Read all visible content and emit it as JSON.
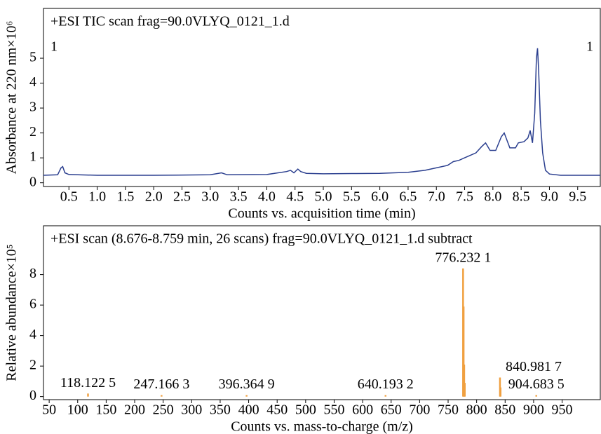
{
  "chart_data": [
    {
      "type": "line",
      "title": "+ESI TIC scan frag=90.0VLYQ_0121_1.d",
      "x_label": "Counts vs. acquisition time (min)",
      "y_label": "Absorbance at 220 nm×10⁶",
      "annotations": [
        "1",
        "1"
      ],
      "xlim": [
        0.05,
        9.9
      ],
      "ylim": [
        -0.15,
        7
      ],
      "xticks": [
        0.5,
        {
          "value": 1,
          "label": "1.0"
        },
        1.5,
        {
          "value": 2,
          "label": "2.0"
        },
        2.5,
        {
          "value": 3,
          "label": "3.0"
        },
        3.5,
        {
          "value": 4,
          "label": "4.0"
        },
        4.5,
        {
          "value": 5,
          "label": "5.0"
        },
        5.5,
        {
          "value": 6,
          "label": "6.0"
        },
        6.5,
        {
          "value": 7,
          "label": "7.0"
        },
        7.5,
        {
          "value": 8,
          "label": "8.0"
        },
        8.5,
        {
          "value": 9,
          "label": "9.0"
        },
        9.5
      ],
      "yticks": [
        0,
        1,
        2,
        3,
        4,
        5
      ],
      "series": [
        {
          "color": "#2b3f8f",
          "x": [
            0.05,
            0.3,
            0.36,
            0.39,
            0.43,
            0.5,
            1.0,
            2.0,
            3.0,
            3.2,
            3.3,
            4.0,
            4.35,
            4.42,
            4.48,
            4.55,
            4.6,
            4.7,
            5.0,
            5.5,
            6.0,
            6.5,
            6.8,
            7.0,
            7.2,
            7.3,
            7.4,
            7.5,
            7.6,
            7.7,
            7.8,
            7.87,
            7.95,
            8.05,
            8.15,
            8.2,
            8.3,
            8.4,
            8.45,
            8.55,
            8.62,
            8.66,
            8.7,
            8.74,
            8.77,
            8.79,
            8.81,
            8.84,
            8.88,
            8.93,
            9.0,
            9.2,
            9.5,
            9.9
          ],
          "values": [
            0.3,
            0.32,
            0.6,
            0.65,
            0.4,
            0.33,
            0.3,
            0.3,
            0.32,
            0.4,
            0.32,
            0.33,
            0.45,
            0.5,
            0.4,
            0.55,
            0.45,
            0.38,
            0.36,
            0.37,
            0.38,
            0.42,
            0.5,
            0.6,
            0.7,
            0.85,
            0.9,
            1.0,
            1.1,
            1.2,
            1.45,
            1.6,
            1.3,
            1.3,
            1.85,
            2.0,
            1.4,
            1.4,
            1.6,
            1.65,
            1.8,
            2.1,
            1.6,
            2.8,
            5.0,
            5.4,
            4.5,
            2.5,
            1.2,
            0.5,
            0.35,
            0.3,
            0.3,
            0.3
          ]
        }
      ]
    },
    {
      "type": "stick",
      "title": "+ESI scan (8.676-8.759 min, 26 scans) frag=90.0VLYQ_0121_1.d subtract",
      "x_label": "Counts vs. mass-to-charge (m/z)",
      "y_label": "Relative abundance×10⁵",
      "xlim": [
        40,
        1017
      ],
      "ylim": [
        -0.2,
        11.2
      ],
      "xticks": [
        50,
        100,
        150,
        200,
        250,
        300,
        350,
        400,
        450,
        500,
        550,
        600,
        650,
        700,
        750,
        800,
        850,
        900,
        950
      ],
      "yticks": [
        0,
        2,
        4,
        6,
        8
      ],
      "series": [
        {
          "color": "#f0a040",
          "x": [
            118.1225,
            247.1663,
            396.3649,
            640.1932,
            776.2321,
            777.2,
            778.2,
            779.2,
            840.9817,
            842.0,
            904.6835
          ],
          "values": [
            0.2,
            0.1,
            0.1,
            0.1,
            8.4,
            5.9,
            2.1,
            0.9,
            1.25,
            0.6,
            0.1
          ],
          "value_labels": [
            "118.122 5",
            "247.166 3",
            "396.364 9",
            "640.193 2",
            "776.232 1",
            null,
            null,
            null,
            "840.981 7",
            null,
            "904.683 5"
          ]
        }
      ]
    }
  ]
}
